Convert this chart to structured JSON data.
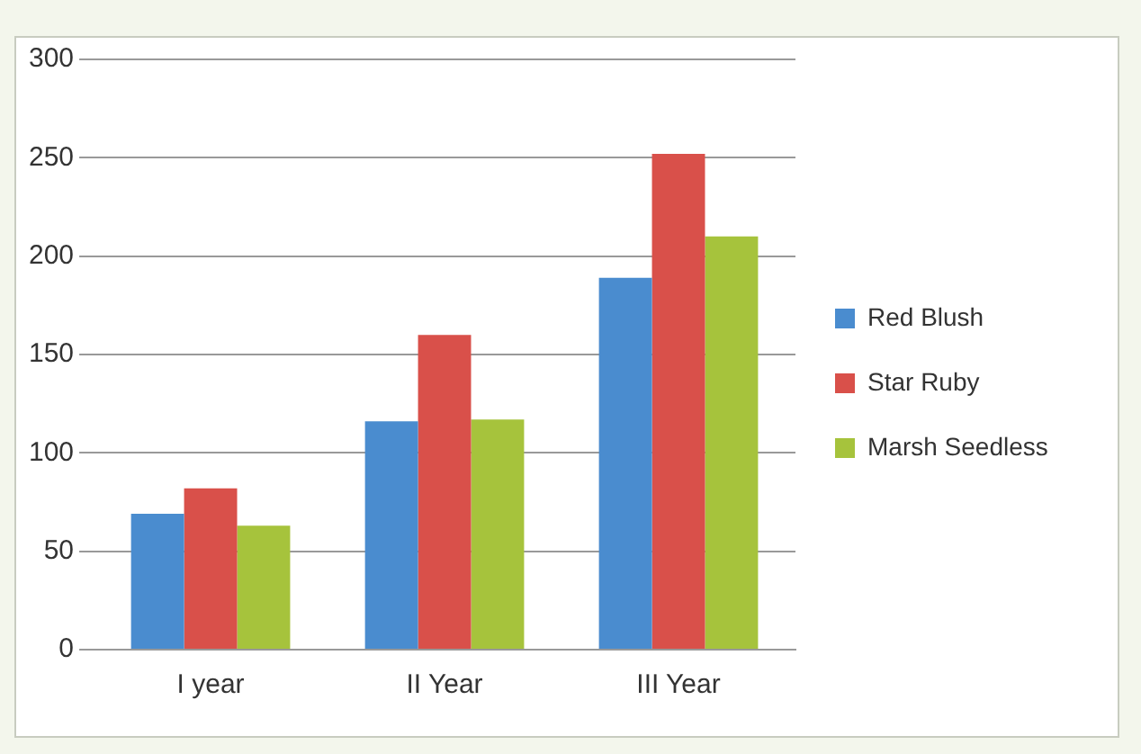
{
  "chart_data": {
    "type": "bar",
    "categories": [
      "I year",
      "II Year",
      "III Year"
    ],
    "series": [
      {
        "name": "Red Blush",
        "color": "#4a8ccf",
        "values": [
          69,
          116,
          189
        ]
      },
      {
        "name": "Star Ruby",
        "color": "#d9504a",
        "values": [
          82,
          160,
          252
        ]
      },
      {
        "name": "Marsh Seedless",
        "color": "#a6c33c",
        "values": [
          63,
          117,
          210
        ]
      }
    ],
    "ylim": [
      0,
      300
    ],
    "yticks": [
      0,
      50,
      100,
      150,
      200,
      250,
      300
    ],
    "grid": "y",
    "legend": "right"
  }
}
